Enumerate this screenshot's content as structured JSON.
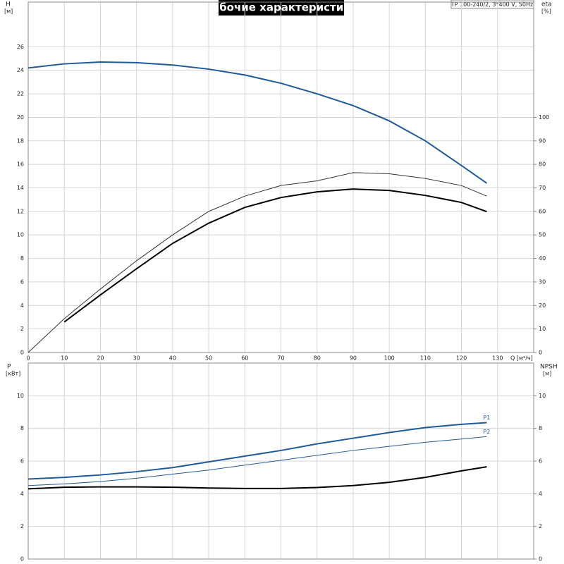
{
  "chart_data": [
    {
      "type": "line",
      "title": "Рабочие характеристики",
      "annotation": "TP 100-240/2, 3*400 V, 50Hz",
      "x_label": "Q [м³/ч]",
      "y_label": "H",
      "y_unit": "[м]",
      "y2_label": "eta",
      "y2_unit": "[%]",
      "x": [
        0,
        10,
        20,
        30,
        40,
        50,
        60,
        70,
        80,
        90,
        100,
        110,
        120,
        127
      ],
      "xlim": [
        0,
        140
      ],
      "xticks": [
        0,
        10,
        20,
        30,
        40,
        50,
        60,
        70,
        80,
        90,
        100,
        110,
        120,
        130
      ],
      "ylim": [
        0,
        29.8
      ],
      "yticks": [
        0,
        2,
        4,
        6,
        8,
        10,
        12,
        14,
        16,
        18,
        20,
        22,
        24,
        26
      ],
      "y2lim": [
        0,
        149
      ],
      "y2ticks": [
        0,
        10,
        20,
        30,
        40,
        50,
        60,
        70,
        80,
        90,
        100
      ],
      "grid": true,
      "series": [
        {
          "color": "#1f5a9a",
          "style": "thick",
          "values": [
            24.2,
            24.55,
            24.7,
            24.65,
            24.45,
            24.1,
            23.6,
            22.9,
            22.0,
            21.0,
            19.7,
            18.0,
            15.9,
            14.4
          ]
        },
        {
          "color": "#333333",
          "style": "thin",
          "axis": "y2",
          "values": [
            0,
            14.4,
            27,
            39,
            50,
            60,
            66.5,
            71,
            73,
            76.5,
            76,
            74,
            71,
            66.5
          ]
        },
        {
          "color": "#000000",
          "style": "thick",
          "axis": "y2",
          "values": [
            null,
            13,
            24.5,
            35.6,
            46.4,
            55,
            61.7,
            65.9,
            68.3,
            69.5,
            68.9,
            66.8,
            63.8,
            59.9
          ]
        }
      ]
    },
    {
      "type": "line",
      "y_label": "P",
      "y_unit": "[кВт]",
      "y2_label": "NPSH",
      "y2_unit": "[м]",
      "x": [
        0,
        10,
        20,
        30,
        40,
        50,
        60,
        70,
        80,
        90,
        100,
        110,
        120,
        127
      ],
      "xlim": [
        0,
        140
      ],
      "xticks": [
        0,
        10,
        20,
        30,
        40,
        50,
        60,
        70,
        80,
        90,
        100,
        110,
        120,
        130
      ],
      "ylim": [
        0,
        12
      ],
      "yticks": [
        0,
        2,
        4,
        6,
        8,
        10
      ],
      "y2lim": [
        0,
        12
      ],
      "y2ticks": [
        0,
        2,
        4,
        6,
        8,
        10
      ],
      "grid": true,
      "series": [
        {
          "name": "P1",
          "color": "#1f5a9a",
          "style": "thick",
          "values": [
            4.9,
            5.0,
            5.15,
            5.35,
            5.6,
            5.95,
            6.3,
            6.65,
            7.05,
            7.4,
            7.75,
            8.05,
            8.25,
            8.35
          ]
        },
        {
          "name": "P2",
          "color": "#1f5a9a",
          "style": "thin",
          "values": [
            4.5,
            4.6,
            4.75,
            4.95,
            5.2,
            5.45,
            5.75,
            6.05,
            6.35,
            6.65,
            6.9,
            7.15,
            7.35,
            7.5
          ]
        },
        {
          "color": "#000000",
          "style": "thick",
          "axis": "y2",
          "values": [
            4.3,
            4.4,
            4.42,
            4.42,
            4.4,
            4.35,
            4.32,
            4.32,
            4.38,
            4.5,
            4.7,
            5.0,
            5.4,
            5.65
          ]
        }
      ]
    }
  ]
}
